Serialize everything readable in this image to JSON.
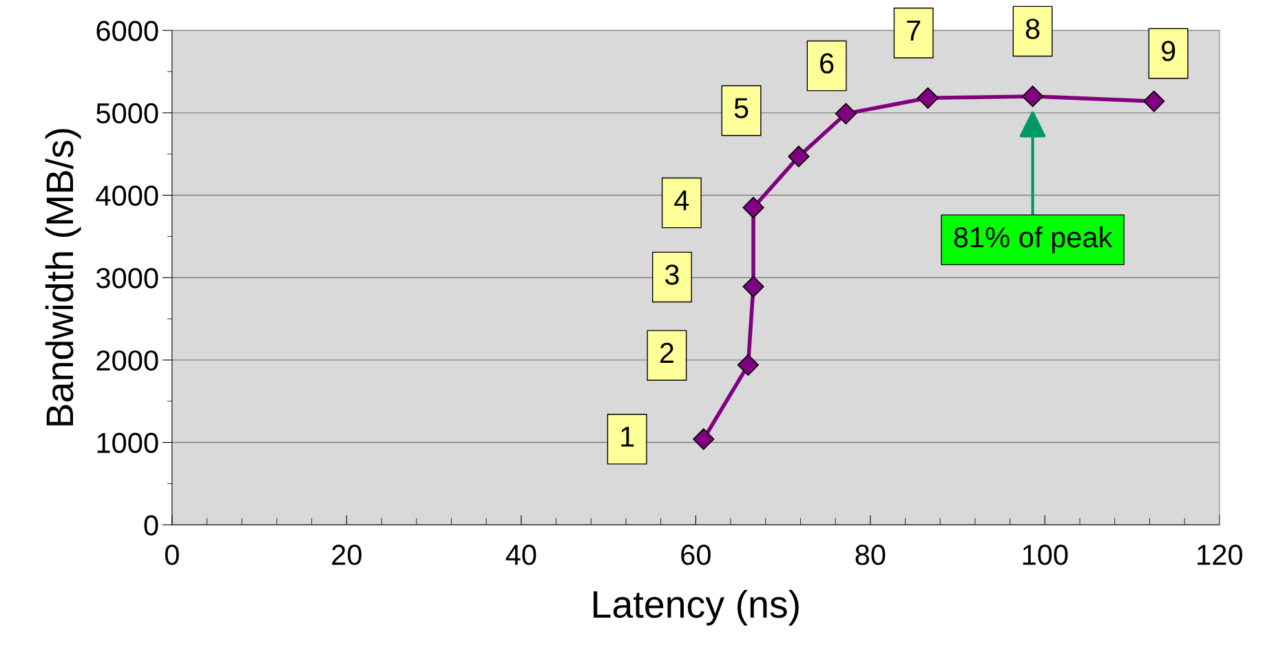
{
  "chart_data": {
    "type": "line",
    "xlabel": "Latency (ns)",
    "ylabel": "Bandwidth (MB/s)",
    "x": [
      60.9,
      66.0,
      66.6,
      66.6,
      71.8,
      77.2,
      86.6,
      98.6,
      112.5
    ],
    "series": [
      {
        "color": "#800080",
        "values": [
          1040,
          1940,
          2890,
          3850,
          4470,
          4990,
          5180,
          5200,
          5140
        ]
      }
    ],
    "marker": "diamond",
    "line_style": "solid",
    "xlim": [
      0,
      120
    ],
    "xticks": [
      0,
      20,
      40,
      60,
      80,
      100,
      120
    ],
    "ylim": [
      0,
      6000
    ],
    "yticks": [
      0,
      1000,
      2000,
      3000,
      4000,
      5000,
      6000
    ],
    "grid": "y",
    "legend": false,
    "annotations": [
      {
        "text": "1",
        "x": 60.9,
        "y": 1040
      },
      {
        "text": "2",
        "x": 66.0,
        "y": 1940
      },
      {
        "text": "3",
        "x": 66.6,
        "y": 2890
      },
      {
        "text": "4",
        "x": 66.6,
        "y": 3850
      },
      {
        "text": "5",
        "x": 71.8,
        "y": 4470
      },
      {
        "text": "6",
        "x": 77.2,
        "y": 4990
      },
      {
        "text": "7",
        "x": 86.6,
        "y": 5180
      },
      {
        "text": "8",
        "x": 98.6,
        "y": 5200
      },
      {
        "text": "9",
        "x": 112.5,
        "y": 5140
      },
      "81% of peak"
    ]
  }
}
